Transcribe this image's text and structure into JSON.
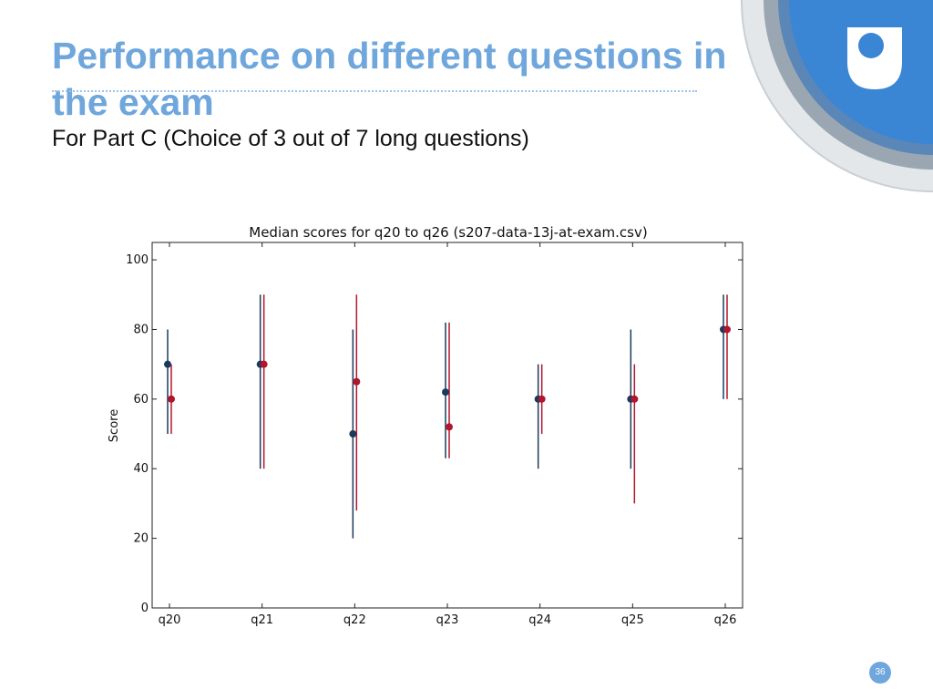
{
  "slide": {
    "title": "Performance on different questions in the exam",
    "subtitle": "For Part C (Choice of 3 out of 7 long questions)",
    "page_number": "36"
  },
  "colors": {
    "title": "#6fa6dc",
    "series_a": "#1c3a5c",
    "series_b": "#b0172d",
    "logo_blue": "#3a86d4"
  },
  "chart_data": {
    "type": "scatter",
    "title": "Median scores for q20 to q26 (s207-data-13j-at-exam.csv)",
    "xlabel": "",
    "ylabel": "Score",
    "categories": [
      "q20",
      "q21",
      "q22",
      "q23",
      "q24",
      "q25",
      "q26"
    ],
    "ylim": [
      0,
      105
    ],
    "yticks": [
      0,
      20,
      40,
      60,
      80,
      100
    ],
    "grid": false,
    "series": [
      {
        "color": "#1c3a5c",
        "values": [
          70,
          70,
          50,
          62,
          60,
          60,
          80
        ],
        "lower": [
          50,
          40,
          20,
          43,
          40,
          40,
          60
        ],
        "upper": [
          80,
          90,
          80,
          82,
          70,
          80,
          90
        ]
      },
      {
        "color": "#b0172d",
        "values": [
          60,
          70,
          65,
          52,
          60,
          60,
          80
        ],
        "lower": [
          50,
          40,
          28,
          43,
          50,
          30,
          60
        ],
        "upper": [
          70,
          90,
          90,
          82,
          70,
          70,
          90
        ]
      }
    ]
  }
}
